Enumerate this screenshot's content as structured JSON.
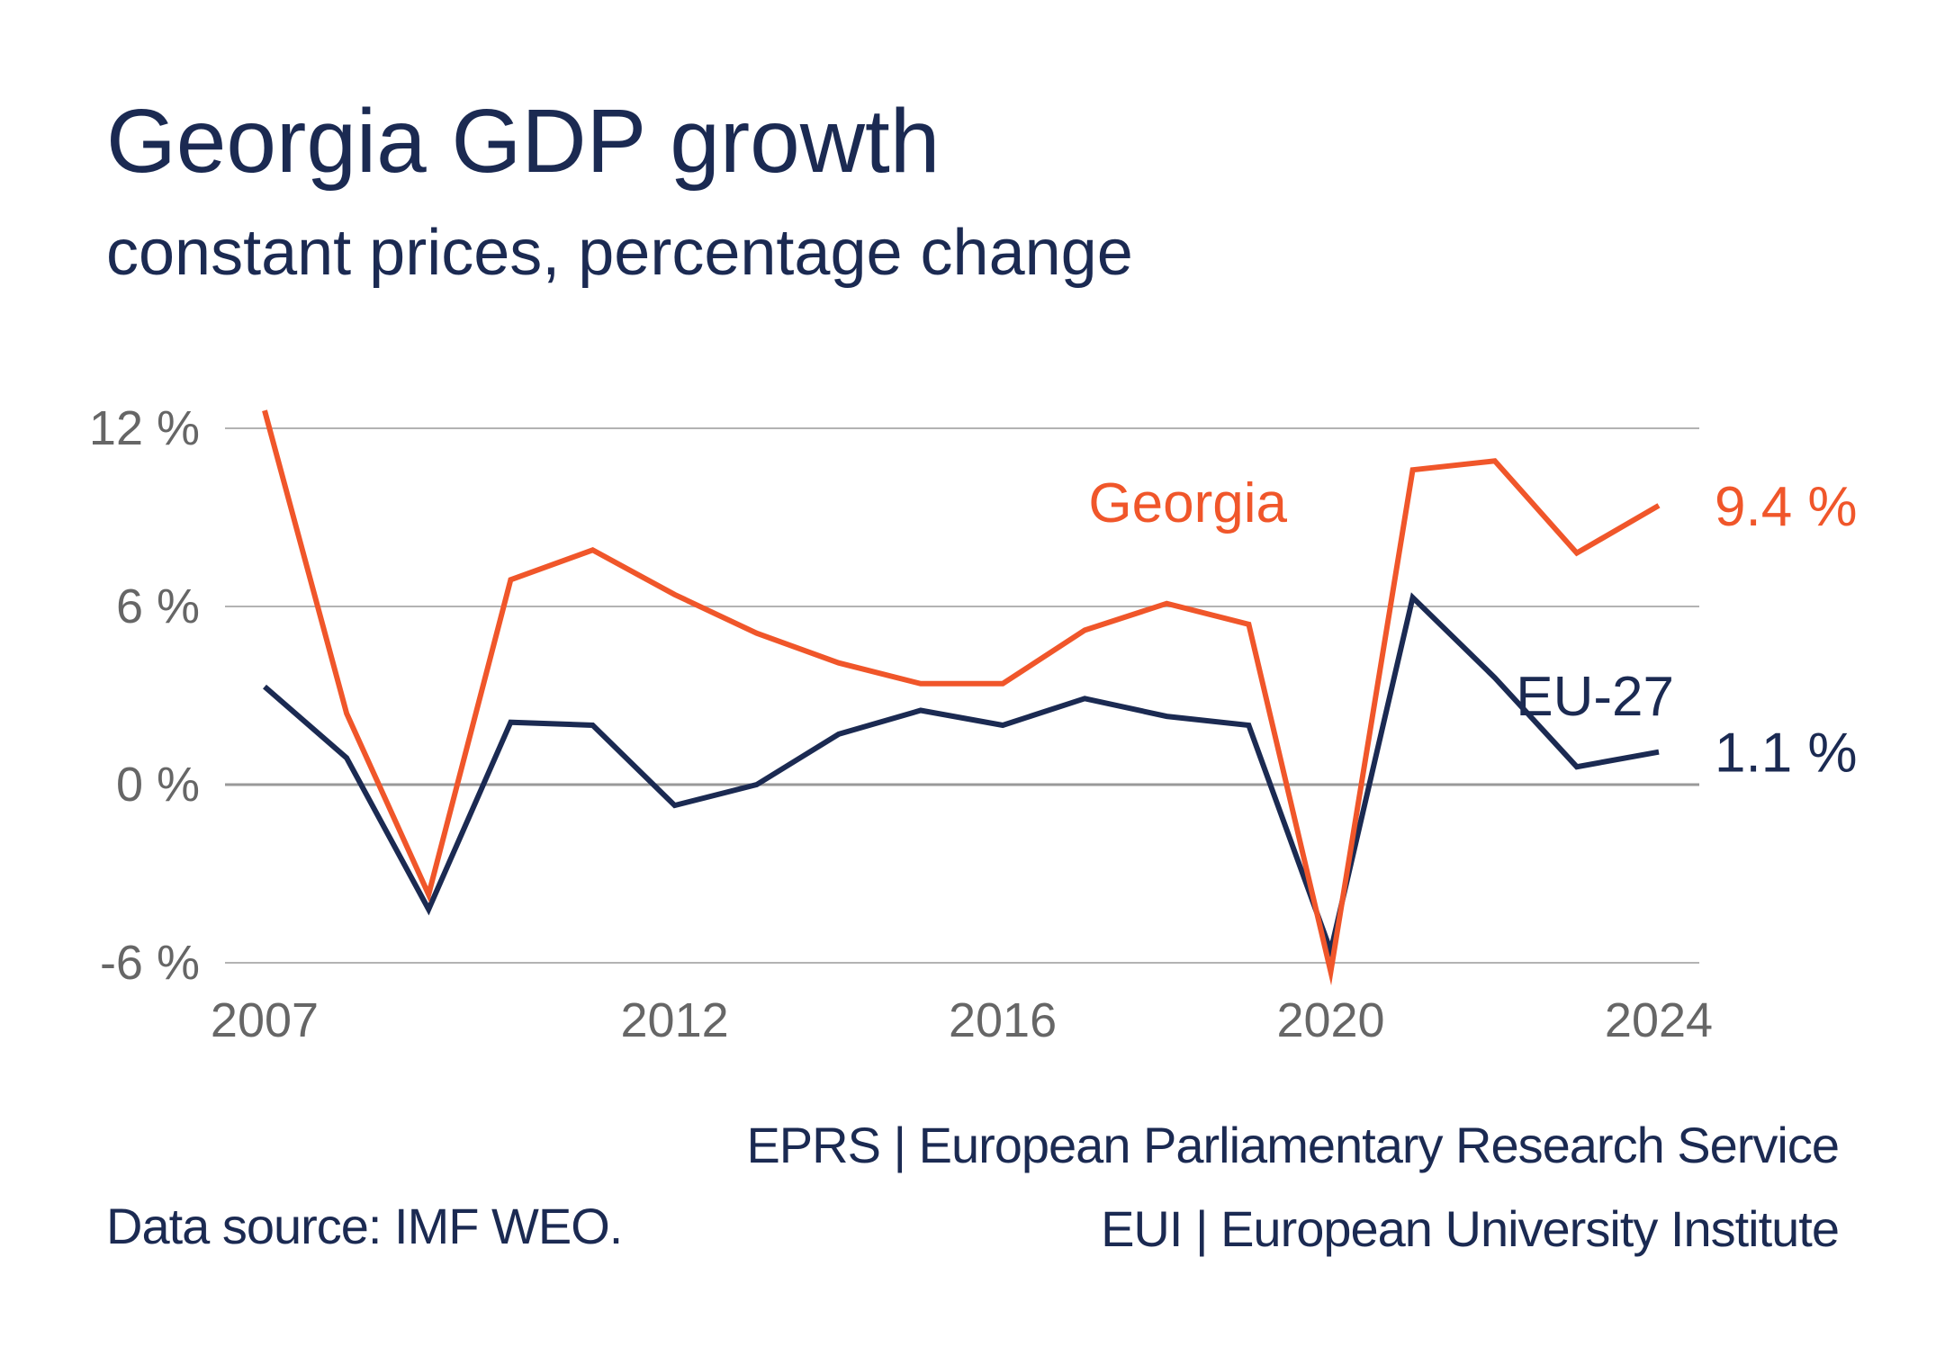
{
  "header": {
    "title": "Georgia GDP growth",
    "subtitle": "constant prices, percentage change"
  },
  "footer": {
    "source": "Data source: IMF WEO.",
    "credit_line1": "EPRS | European Parliamentary Research Service",
    "credit_line2": "EUI | European University Institute"
  },
  "colors": {
    "georgia": "#f0562a",
    "eu27": "#1b2a52",
    "grid": "#b3b3b3",
    "zero_line": "#999999",
    "tick_text": "#666666"
  },
  "chart_data": {
    "type": "line",
    "title": "Georgia GDP growth",
    "subtitle": "constant prices, percentage change",
    "xlabel": "",
    "ylabel": "",
    "x": [
      2007,
      2008,
      2009,
      2010,
      2011,
      2012,
      2013,
      2014,
      2015,
      2016,
      2017,
      2018,
      2019,
      2020,
      2021,
      2022,
      2023,
      2024
    ],
    "xlim": [
      2007,
      2024
    ],
    "ylim": [
      -6,
      12
    ],
    "x_ticks": [
      2007,
      2012,
      2016,
      2020,
      2024
    ],
    "x_tick_labels": [
      "2007",
      "2012",
      "2016",
      "2020",
      "2024"
    ],
    "y_ticks": [
      -6,
      0,
      6,
      12
    ],
    "y_tick_labels": [
      "-6 %",
      "0 %",
      "6 %",
      "12 %"
    ],
    "grid": true,
    "legend": "inline-labels",
    "series": [
      {
        "name": "Georgia",
        "end_label": "9.4 %",
        "values": [
          12.6,
          2.4,
          -3.7,
          6.9,
          7.9,
          6.4,
          5.1,
          4.1,
          3.4,
          3.4,
          5.2,
          6.1,
          5.4,
          -6.3,
          10.6,
          10.9,
          7.8,
          9.4
        ]
      },
      {
        "name": "EU-27",
        "end_label": "1.1 %",
        "values": [
          3.3,
          0.9,
          -4.2,
          2.1,
          2.0,
          -0.7,
          0.0,
          1.7,
          2.5,
          2.0,
          2.9,
          2.3,
          2.0,
          -5.6,
          6.3,
          3.6,
          0.6,
          1.1
        ]
      }
    ]
  }
}
